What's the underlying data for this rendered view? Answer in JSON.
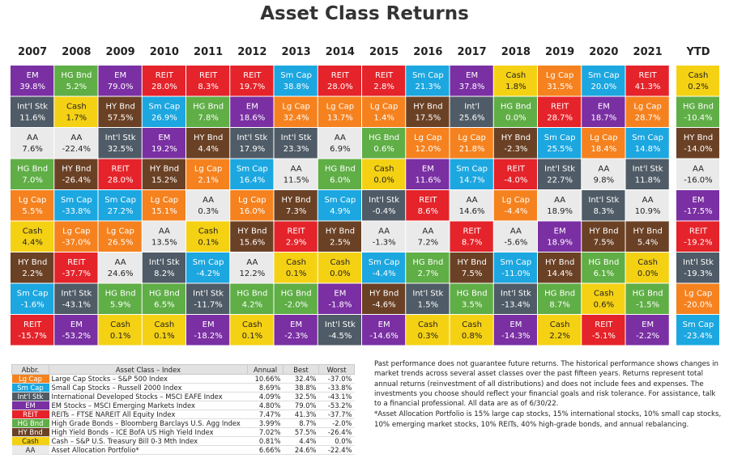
{
  "title": "Asset Class Returns",
  "colors": {
    "Lg Cap": "#f5821f",
    "Sm Cap": "#1ca7e0",
    "Int'l Stk": "#4f5b66",
    "EM": "#7a2fa3",
    "REIT": "#e5232a",
    "HG Bnd": "#5fae46",
    "HY Bnd": "#6b4125",
    "Cash": "#f5d114",
    "AA": "#eaeaea"
  },
  "light_text_classes": [
    "Cash",
    "AA"
  ],
  "chart_data": {
    "type": "table",
    "title": "Asset Class Returns",
    "years": [
      "2007",
      "2008",
      "2009",
      "2010",
      "2011",
      "2012",
      "2013",
      "2014",
      "2015",
      "2016",
      "2017",
      "2018",
      "2019",
      "2020",
      "2021"
    ],
    "ytd_label": "YTD",
    "columns": [
      [
        [
          "EM",
          "39.8%"
        ],
        [
          "Int'l Stk",
          "11.6%"
        ],
        [
          "AA",
          "7.6%"
        ],
        [
          "HG Bnd",
          "7.0%"
        ],
        [
          "Lg Cap",
          "5.5%"
        ],
        [
          "Cash",
          "4.4%"
        ],
        [
          "HY Bnd",
          "2.2%"
        ],
        [
          "Sm Cap",
          "-1.6%"
        ],
        [
          "REIT",
          "-15.7%"
        ]
      ],
      [
        [
          "HG Bnd",
          "5.2%"
        ],
        [
          "Cash",
          "1.7%"
        ],
        [
          "AA",
          "-22.4%"
        ],
        [
          "HY Bnd",
          "-26.4%"
        ],
        [
          "Sm Cap",
          "-33.8%"
        ],
        [
          "Lg Cap",
          "-37.0%"
        ],
        [
          "REIT",
          "-37.7%"
        ],
        [
          "Int'l Stk",
          "-43.1%"
        ],
        [
          "EM",
          "-53.2%"
        ]
      ],
      [
        [
          "EM",
          "79.0%"
        ],
        [
          "HY Bnd",
          "57.5%"
        ],
        [
          "Int'l Stk",
          "32.5%"
        ],
        [
          "REIT",
          "28.0%"
        ],
        [
          "Sm Cap",
          "27.2%"
        ],
        [
          "Lg Cap",
          "26.5%"
        ],
        [
          "AA",
          "24.6%"
        ],
        [
          "HG Bnd",
          "5.9%"
        ],
        [
          "Cash",
          "0.1%"
        ]
      ],
      [
        [
          "REIT",
          "28.0%"
        ],
        [
          "Sm Cap",
          "26.9%"
        ],
        [
          "EM",
          "19.2%"
        ],
        [
          "HY Bnd",
          "15.2%"
        ],
        [
          "Lg Cap",
          "15.1%"
        ],
        [
          "AA",
          "13.5%"
        ],
        [
          "Int'l Stk",
          "8.2%"
        ],
        [
          "HG Bnd",
          "6.5%"
        ],
        [
          "Cash",
          "0.1%"
        ]
      ],
      [
        [
          "REIT",
          "8.3%"
        ],
        [
          "HG Bnd",
          "7.8%"
        ],
        [
          "HY Bnd",
          "4.4%"
        ],
        [
          "Lg Cap",
          "2.1%"
        ],
        [
          "AA",
          "0.3%"
        ],
        [
          "Cash",
          "0.1%"
        ],
        [
          "Sm Cap",
          "-4.2%"
        ],
        [
          "Int'l Stk",
          "-11.7%"
        ],
        [
          "EM",
          "-18.2%"
        ]
      ],
      [
        [
          "REIT",
          "19.7%"
        ],
        [
          "EM",
          "18.6%"
        ],
        [
          "Int'l Stk",
          "17.9%"
        ],
        [
          "Sm Cap",
          "16.4%"
        ],
        [
          "Lg Cap",
          "16.0%"
        ],
        [
          "HY Bnd",
          "15.6%"
        ],
        [
          "AA",
          "12.2%"
        ],
        [
          "HG Bnd",
          "4.2%"
        ],
        [
          "Cash",
          "0.1%"
        ]
      ],
      [
        [
          "Sm Cap",
          "38.8%"
        ],
        [
          "Lg Cap",
          "32.4%"
        ],
        [
          "Int'l Stk",
          "23.3%"
        ],
        [
          "AA",
          "11.5%"
        ],
        [
          "HY Bnd",
          "7.3%"
        ],
        [
          "REIT",
          "2.9%"
        ],
        [
          "Cash",
          "0.1%"
        ],
        [
          "HG Bnd",
          "-2.0%"
        ],
        [
          "EM",
          "-2.3%"
        ]
      ],
      [
        [
          "REIT",
          "28.0%"
        ],
        [
          "Lg Cap",
          "13.7%"
        ],
        [
          "AA",
          "6.9%"
        ],
        [
          "HG Bnd",
          "6.0%"
        ],
        [
          "Sm Cap",
          "4.9%"
        ],
        [
          "HY Bnd",
          "2.5%"
        ],
        [
          "Cash",
          "0.0%"
        ],
        [
          "EM",
          "-1.8%"
        ],
        [
          "Int'l Stk",
          "-4.5%"
        ]
      ],
      [
        [
          "REIT",
          "2.8%"
        ],
        [
          "Lg Cap",
          "1.4%"
        ],
        [
          "HG Bnd",
          "0.6%"
        ],
        [
          "Cash",
          "0.0%"
        ],
        [
          "Int'l Stk",
          "-0.4%"
        ],
        [
          "AA",
          "-1.3%"
        ],
        [
          "Sm Cap",
          "-4.4%"
        ],
        [
          "HY Bnd",
          "-4.6%"
        ],
        [
          "EM",
          "-14.6%"
        ]
      ],
      [
        [
          "Sm Cap",
          "21.3%"
        ],
        [
          "HY Bnd",
          "17.5%"
        ],
        [
          "Lg Cap",
          "12.0%"
        ],
        [
          "EM",
          "11.6%"
        ],
        [
          "REIT",
          "8.6%"
        ],
        [
          "AA",
          "7.2%"
        ],
        [
          "HG Bnd",
          "2.7%"
        ],
        [
          "Int'l Stk",
          "1.5%"
        ],
        [
          "Cash",
          "0.3%"
        ]
      ],
      [
        [
          "EM",
          "37.8%"
        ],
        [
          "Int'l",
          "25.6%"
        ],
        [
          "Lg Cap",
          "21.8%"
        ],
        [
          "Sm Cap",
          "14.7%"
        ],
        [
          "AA",
          "14.6%"
        ],
        [
          "REIT",
          "8.7%"
        ],
        [
          "HY Bnd",
          "7.5%"
        ],
        [
          "HG Bnd",
          "3.5%"
        ],
        [
          "Cash",
          "0.8%"
        ]
      ],
      [
        [
          "Cash",
          "1.8%"
        ],
        [
          "HG Bnd",
          "0.0%"
        ],
        [
          "HY Bnd",
          "-2.3%"
        ],
        [
          "REIT",
          "-4.0%"
        ],
        [
          "Lg Cap",
          "-4.4%"
        ],
        [
          "AA",
          "-5.6%"
        ],
        [
          "Sm Cap",
          "-11.0%"
        ],
        [
          "Int'l Stk",
          "-13.4%"
        ],
        [
          "EM",
          "-14.3%"
        ]
      ],
      [
        [
          "Lg Cap",
          "31.5%"
        ],
        [
          "REIT",
          "28.7%"
        ],
        [
          "Sm Cap",
          "25.5%"
        ],
        [
          "Int'l Stk",
          "22.7%"
        ],
        [
          "AA",
          "18.9%"
        ],
        [
          "EM",
          "18.9%"
        ],
        [
          "HY Bnd",
          "14.4%"
        ],
        [
          "HG Bnd",
          "8.7%"
        ],
        [
          "Cash",
          "2.2%"
        ]
      ],
      [
        [
          "Sm Cap",
          "20.0%"
        ],
        [
          "EM",
          "18.7%"
        ],
        [
          "Lg Cap",
          "18.4%"
        ],
        [
          "AA",
          "9.8%"
        ],
        [
          "Int'l Stk",
          "8.3%"
        ],
        [
          "HY Bnd",
          "7.5%"
        ],
        [
          "HG Bnd",
          "6.1%"
        ],
        [
          "Cash",
          "0.6%"
        ],
        [
          "REIT",
          "-5.1%"
        ]
      ],
      [
        [
          "REIT",
          "41.3%"
        ],
        [
          "Lg Cap",
          "28.7%"
        ],
        [
          "Sm Cap",
          "14.8%"
        ],
        [
          "Int'l Stk",
          "11.8%"
        ],
        [
          "AA",
          "10.9%"
        ],
        [
          "HY Bnd",
          "5.4%"
        ],
        [
          "Cash",
          "0.0%"
        ],
        [
          "HG Bnd",
          "-1.5%"
        ],
        [
          "EM",
          "-2.2%"
        ]
      ]
    ],
    "ytd": [
      [
        "Cash",
        "0.2%"
      ],
      [
        "HG Bnd",
        "-10.4%"
      ],
      [
        "HY Bnd",
        "-14.0%"
      ],
      [
        "AA",
        "-16.0%"
      ],
      [
        "EM",
        "-17.5%"
      ],
      [
        "REIT",
        "-19.2%"
      ],
      [
        "Int'l Stk",
        "-19.3%"
      ],
      [
        "Lg Cap",
        "-20.0%"
      ],
      [
        "Sm Cap",
        "-23.4%"
      ]
    ]
  },
  "legend": {
    "headers": [
      "Abbr.",
      "Asset Class – Index",
      "Annual",
      "Best",
      "Worst"
    ],
    "rows": [
      {
        "abbr": "Lg Cap",
        "name": "Large Cap Stocks – S&P 500 Index",
        "annual": "10.66%",
        "best": "32.4%",
        "worst": "-37.0%"
      },
      {
        "abbr": "Sm Cap",
        "name": "Small Cap Stocks – Russell 2000 Index",
        "annual": "8.69%",
        "best": "38.8%",
        "worst": "-33.8%"
      },
      {
        "abbr": "Int'l Stk",
        "name": "International Developed Stocks – MSCI EAFE Index",
        "annual": "4.09%",
        "best": "32.5%",
        "worst": "-43.1%"
      },
      {
        "abbr": "EM",
        "name": "EM Stocks – MSCI Emerging Markets Index",
        "annual": "4.80%",
        "best": "79.0%",
        "worst": "-53.2%"
      },
      {
        "abbr": "REIT",
        "name": "REITs – FTSE NAREIT All Equity Index",
        "annual": "7.47%",
        "best": "41.3%",
        "worst": "-37.7%"
      },
      {
        "abbr": "HG Bnd",
        "name": "High Grade Bonds – Bloomberg Barclays U.S. Agg Index",
        "annual": "3.99%",
        "best": "8.7%",
        "worst": "-2.0%"
      },
      {
        "abbr": "HY Bnd",
        "name": "High Yield Bonds – ICE BofA US High Yield Index",
        "annual": "7.02%",
        "best": "57.5%",
        "worst": "-26.4%"
      },
      {
        "abbr": "Cash",
        "name": "Cash – S&P U.S. Treasury Bill 0-3 Mth Index",
        "annual": "0.81%",
        "best": "4.4%",
        "worst": "0.0%"
      },
      {
        "abbr": "AA",
        "name": "Asset Allocation Portfolio*",
        "annual": "6.66%",
        "best": "24.6%",
        "worst": "-22.4%"
      }
    ]
  },
  "notes": {
    "p1": "Past performance does not guarantee future returns. The historical performance shows changes in market trends across several asset classes over the past fifteen years. Returns represent total annual returns (reinvestment of all distributions) and does not include fees and expenses. The investments you choose should reflect your financial goals and risk tolerance. For assistance, talk to a financial professional. All data are as of 6/30/22.",
    "p2": "*Asset Allocation Portfolio is 15% large cap stocks, 15% international stocks, 10% small cap stocks, 10% emerging market stocks, 10% REITs, 40% high-grade bonds, and annual rebalancing."
  }
}
